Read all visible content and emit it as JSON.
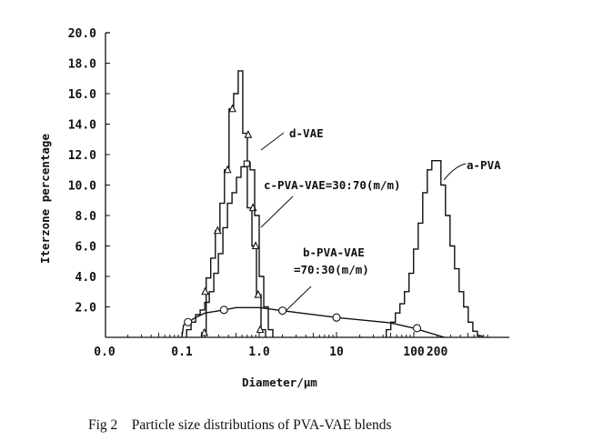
{
  "chart_data": {
    "type": "line",
    "title": "",
    "caption": "Fig 2    Particle size distributions of PVA-VAE blends",
    "xlabel": "Diameter/μm",
    "ylabel": "Iterzone percentage",
    "xscale": "log",
    "xlim": [
      0.01,
      1500
    ],
    "ylim": [
      0,
      20
    ],
    "grid": false,
    "yticks": [
      {
        "v": 2,
        "label": "2.0"
      },
      {
        "v": 4,
        "label": "4.0"
      },
      {
        "v": 6,
        "label": "6.0"
      },
      {
        "v": 8,
        "label": "8.0"
      },
      {
        "v": 10,
        "label": "10.0"
      },
      {
        "v": 12,
        "label": "12.0"
      },
      {
        "v": 14,
        "label": "14.0"
      },
      {
        "v": 16,
        "label": "16.0"
      },
      {
        "v": 18,
        "label": "18.0"
      },
      {
        "v": 20,
        "label": "20.0"
      }
    ],
    "xticks": [
      {
        "v": 0.01,
        "label": "0.0"
      },
      {
        "v": 0.1,
        "label": "0.1"
      },
      {
        "v": 1,
        "label": "1.0"
      },
      {
        "v": 10,
        "label": "10"
      },
      {
        "v": 100,
        "label": "100"
      },
      {
        "v": 200,
        "label": "200"
      }
    ],
    "series": [
      {
        "name": "d-VAE",
        "label": "d-VAE",
        "kind": "step",
        "marker": "triangle",
        "x_start": 0.18,
        "x_end": 1.21,
        "heights": [
          0.3,
          3.9,
          5.2,
          7.0,
          8.8,
          11.0,
          15.0,
          16.0,
          17.5,
          13.4,
          8.5,
          6.0,
          2.8,
          0.5
        ],
        "markers": [
          [
            0.195,
            0.3
          ],
          [
            0.2,
            3.0
          ],
          [
            0.29,
            7.0
          ],
          [
            0.39,
            11.0
          ],
          [
            0.45,
            15.0
          ],
          [
            0.72,
            13.3
          ],
          [
            0.83,
            8.5
          ],
          [
            0.9,
            6.0
          ],
          [
            0.97,
            2.8
          ],
          [
            1.03,
            0.5
          ]
        ]
      },
      {
        "name": "c-PVA-VAE=30:70(m/m)",
        "label": "c-PVA-VAE=30:70(m/m)",
        "kind": "step",
        "marker": "square",
        "x_start": 0.115,
        "x_end": 1.5,
        "heights": [
          0.5,
          1.0,
          1.5,
          1.8,
          2.3,
          3.0,
          4.2,
          5.5,
          7.2,
          8.8,
          9.5,
          10.5,
          11.2,
          11.5,
          11.0,
          8.0,
          4.0,
          2.0,
          0.5
        ],
        "markers": [
          [
            0.69,
            11.4
          ]
        ]
      },
      {
        "name": "b-PVA-VAE=70:30(m/m)",
        "label_line1": "b-PVA-VAE",
        "label_line2": "=70:30(m/m)",
        "kind": "smooth",
        "marker": "circle",
        "points": [
          [
            0.1,
            0
          ],
          [
            0.105,
            0.8
          ],
          [
            0.12,
            1.0
          ],
          [
            0.15,
            1.3
          ],
          [
            0.2,
            1.6
          ],
          [
            0.35,
            1.8
          ],
          [
            0.5,
            1.95
          ],
          [
            1,
            1.95
          ],
          [
            2,
            1.75
          ],
          [
            10,
            1.3
          ],
          [
            50,
            0.95
          ],
          [
            100,
            0.6
          ],
          [
            250,
            0
          ]
        ],
        "markers": [
          [
            0.12,
            1.0
          ],
          [
            0.35,
            1.8
          ],
          [
            2,
            1.75
          ],
          [
            10,
            1.3
          ],
          [
            110,
            0.6
          ]
        ]
      },
      {
        "name": "a-PVA",
        "label": "a-PVA",
        "kind": "step",
        "marker": "none",
        "x_start": 44,
        "x_end": 760,
        "heights": [
          0.5,
          1.0,
          1.6,
          2.2,
          3.0,
          4.2,
          5.8,
          7.5,
          9.5,
          11.0,
          11.6,
          11.6,
          10.0,
          8.0,
          6.0,
          4.5,
          3.0,
          2.0,
          1.0,
          0.4,
          0.1
        ],
        "markers": []
      }
    ]
  }
}
